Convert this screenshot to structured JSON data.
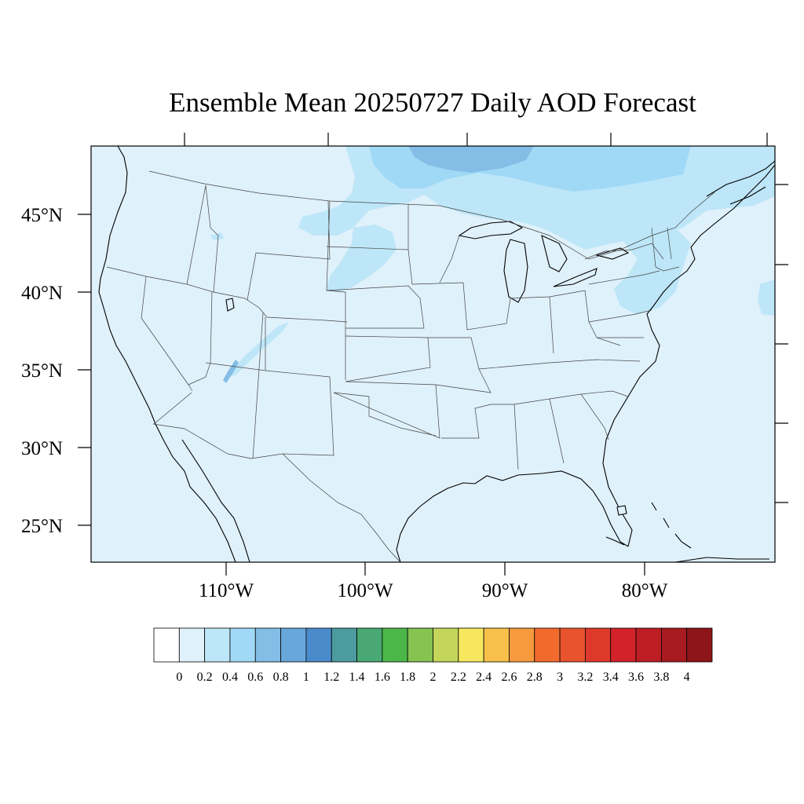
{
  "title": "Ensemble Mean 20250727 Daily AOD Forecast",
  "map": {
    "background_color": "#dff1fb",
    "lat_labels": [
      "45°N",
      "40°N",
      "35°N",
      "30°N",
      "25°N"
    ],
    "lon_labels": [
      "110°W",
      "100°W",
      "90°W",
      "80°W"
    ],
    "aod_levels_shown": [
      {
        "region": "southern Canada / northern plains",
        "aod": 0.4
      },
      {
        "region": "central Canada core",
        "aod": 0.6
      },
      {
        "region": "Mid-Atlantic / Northeast",
        "aod": 0.4
      },
      {
        "region": "Utah–Arizona plume",
        "aod": 0.6
      }
    ]
  },
  "colorbar": {
    "labels": [
      "0",
      "0.2",
      "0.4",
      "0.6",
      "0.8",
      "1",
      "1.2",
      "1.4",
      "1.6",
      "1.8",
      "2",
      "2.2",
      "2.4",
      "2.6",
      "2.8",
      "3",
      "3.2",
      "3.4",
      "3.6",
      "3.8",
      "4"
    ],
    "colors": [
      "#ffffff",
      "#dff1fb",
      "#bde6f8",
      "#a0d9f6",
      "#84bde6",
      "#68a7dc",
      "#4a8bcb",
      "#4b9b9f",
      "#49a874",
      "#4bb748",
      "#86c351",
      "#c4d65a",
      "#f6e75e",
      "#f8c04a",
      "#f69a3e",
      "#f26a2e",
      "#e9532d",
      "#de3a2b",
      "#d2232a",
      "#bc1e24",
      "#a71a20",
      "#8e1519"
    ]
  }
}
